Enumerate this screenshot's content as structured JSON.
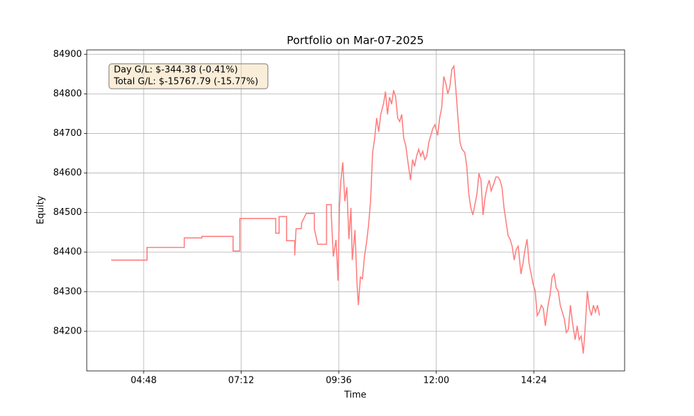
{
  "chart_data": {
    "type": "line",
    "title": "Portfolio on Mar-07-2025",
    "x_label": "Time",
    "y_label": "Equity",
    "annotations": [
      "Day G/L: $-344.38 (-0.41%)",
      "Total G/L: $-15767.79 (-15.77%)"
    ],
    "grid": true,
    "xlim": [
      204,
      998
    ],
    "xticks": [
      {
        "value": 288,
        "label": "04:48"
      },
      {
        "value": 432,
        "label": "07:12"
      },
      {
        "value": 576,
        "label": "09:36"
      },
      {
        "value": 720,
        "label": "12:00"
      },
      {
        "value": 864,
        "label": "14:24"
      }
    ],
    "ylim": [
      84100,
      84911
    ],
    "yticks": [
      84200,
      84300,
      84400,
      84500,
      84600,
      84700,
      84800,
      84900
    ],
    "x": [
      240,
      293,
      293,
      348,
      348,
      374,
      374,
      420,
      420,
      430,
      430,
      483,
      483,
      488,
      488,
      499,
      499,
      511,
      511,
      513,
      521,
      521,
      528,
      540,
      540,
      545,
      558,
      558,
      565,
      565,
      568,
      572,
      575,
      577,
      579,
      582,
      585,
      588,
      591,
      594,
      596,
      600,
      603,
      605,
      608,
      611,
      614,
      617,
      620,
      623,
      626,
      629,
      632,
      635,
      638,
      642,
      645,
      648,
      651,
      654,
      657,
      660,
      663,
      666,
      669,
      672,
      675,
      679,
      682,
      685,
      688,
      691,
      694,
      697,
      700,
      703,
      706,
      709,
      712,
      715,
      718,
      722,
      725,
      728,
      731,
      734,
      737,
      740,
      743,
      746,
      749,
      752,
      755,
      758,
      762,
      765,
      768,
      771,
      774,
      777,
      780,
      783,
      786,
      789,
      792,
      795,
      798,
      801,
      805,
      808,
      811,
      814,
      817,
      820,
      823,
      826,
      829,
      832,
      835,
      838,
      841,
      845,
      848,
      851,
      854,
      857,
      860,
      863,
      866,
      869,
      872,
      875,
      878,
      881,
      885,
      888,
      891,
      894,
      897,
      900,
      903,
      906,
      909,
      912,
      915,
      918,
      921,
      925,
      928,
      931,
      934,
      937,
      940,
      943,
      946,
      949,
      952,
      955,
      958,
      961
    ],
    "series": [
      {
        "name": "Equity",
        "color": "#ff7f7f",
        "values": [
          84380,
          84380,
          84412,
          84412,
          84436,
          84436,
          84440,
          84440,
          84403,
          84403,
          84485,
          84485,
          84448,
          84448,
          84490,
          84490,
          84429,
          84429,
          84392,
          84459,
          84460,
          84473,
          84498,
          84498,
          84459,
          84420,
          84420,
          84520,
          84520,
          84494,
          84389,
          84431,
          84328,
          84512,
          84578,
          84627,
          84529,
          84564,
          84433,
          84512,
          84380,
          84456,
          84319,
          84266,
          84337,
          84333,
          84389,
          84424,
          84468,
          84529,
          84652,
          84687,
          84739,
          84704,
          84748,
          84774,
          84806,
          84748,
          84792,
          84774,
          84809,
          84792,
          84739,
          84730,
          84748,
          84687,
          84669,
          84617,
          84582,
          84634,
          84617,
          84643,
          84660,
          84643,
          84655,
          84634,
          84643,
          84678,
          84695,
          84713,
          84722,
          84695,
          84739,
          84765,
          84844,
          84827,
          84800,
          84818,
          84862,
          84870,
          84809,
          84739,
          84678,
          84660,
          84652,
          84617,
          84547,
          84512,
          84494,
          84520,
          84547,
          84599,
          84582,
          84494,
          84538,
          84564,
          84582,
          84555,
          84573,
          84590,
          84590,
          84582,
          84564,
          84512,
          84477,
          84442,
          84433,
          84415,
          84380,
          84407,
          84415,
          84345,
          84372,
          84407,
          84433,
          84372,
          84345,
          84319,
          84302,
          84240,
          84249,
          84266,
          84258,
          84214,
          84266,
          84293,
          84337,
          84345,
          84310,
          84302,
          84266,
          84249,
          84232,
          84197,
          84205,
          84266,
          84223,
          84179,
          84214,
          84179,
          84188,
          84144,
          84214,
          84302,
          84258,
          84240,
          84266,
          84249,
          84266,
          84240
        ]
      }
    ]
  }
}
